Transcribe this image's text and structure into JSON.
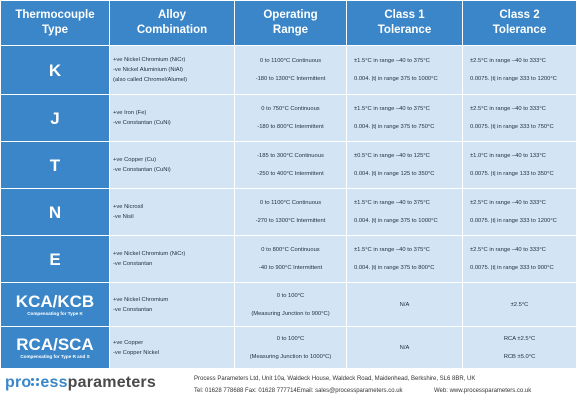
{
  "headers": [
    [
      "Thermocouple",
      "Type"
    ],
    [
      "Alloy",
      "Combination"
    ],
    [
      "Operating",
      "Range"
    ],
    [
      "Class 1",
      "Tolerance"
    ],
    [
      "Class 2",
      "Tolerance"
    ]
  ],
  "rows": [
    {
      "type": "K",
      "sub": "",
      "alloy": [
        "+ve   Nickel Chromium (NiCr)",
        "-ve    Nickel Aluminium (NiAl)",
        "(also called Chromel/Alumel)"
      ],
      "range": [
        "0 to 1100°C Continuous",
        "",
        "-180 to 1300°C Intermittent"
      ],
      "class1": [
        "±1.5°C in range –40 to 375°C",
        "",
        "0.004. |t| in range 375 to 1000°C"
      ],
      "class2": [
        "±2.5°C in range –40 to 333°C",
        "",
        "0.0075. |t| in range 333 to 1200°C"
      ]
    },
    {
      "type": "J",
      "sub": "",
      "alloy": [
        "+ve    Iron (Fe)",
        "-ve    Constantan (CuNi)"
      ],
      "range": [
        "0 to 750°C Continuous",
        "",
        "-180 to 800°C Intermittent"
      ],
      "class1": [
        "±1.5°C in range –40 to 375°C",
        "",
        "0.004. |t| in range 375 to 750°C"
      ],
      "class2": [
        "±2.5°C in range –40 to 333°C",
        "",
        "0.0075. |t| in range 333 to 750°C"
      ]
    },
    {
      "type": "T",
      "sub": "",
      "alloy": [
        "+ve    Copper (Cu)",
        "-ve    Constantan (CuNi)"
      ],
      "range": [
        "-185 to 300°C Continuous",
        "",
        "-250 to 400°C Intermittent"
      ],
      "class1": [
        "±0.5°C in range –40 to 125°C",
        "",
        "0.004. |t| in range 125 to 350°C"
      ],
      "class2": [
        "±1.0°C in range –40 to 133°C",
        "",
        "0.0075. |t| in range 133 to 350°C"
      ]
    },
    {
      "type": "N",
      "sub": "",
      "alloy": [
        "+ve     Nicrosil",
        "-ve     Nisil"
      ],
      "range": [
        "0 to 1100°C Continuous",
        "",
        "-270 to 1300°C Intermittent"
      ],
      "class1": [
        "±1.5°C in range –40 to 375°C",
        "",
        "0.004. |t| in range 375 to 1000°C"
      ],
      "class2": [
        "±2.5°C in range –40 to 333°C",
        "",
        "0.0075. |t| in range 333 to 1200°C"
      ]
    },
    {
      "type": "E",
      "sub": "",
      "alloy": [
        "+ve   Nickel Chromium (NiCr)",
        "-ve     Constantan"
      ],
      "range": [
        "0 to 800°C Continuous",
        "",
        "-40 to 900°C Intermittent"
      ],
      "class1": [
        "±1.5°C in range –40 to 375°C",
        "",
        "0.004. |t| in range 375 to 800°C"
      ],
      "class2": [
        "±2.5°C in range –40 to 333°C",
        "",
        "0.0075. |t| in range 333 to 900°C"
      ]
    },
    {
      "type": "KCA/KCB",
      "sub": "Compensating for Type K",
      "alloy": [
        "+ve    Nickel Chromium",
        "-ve     Constantan"
      ],
      "range": [
        "0 to 100°C",
        "",
        "(Measuring Junction to 900°C)"
      ],
      "class1": [
        "N/A"
      ],
      "class2": [
        "±2.5°C"
      ]
    },
    {
      "type": "RCA/SCA",
      "sub": "Compensating for Type R and S",
      "alloy": [
        "+ve       Copper",
        "-ve     Copper Nickel"
      ],
      "range": [
        "0 to 100°C",
        "",
        "(Measuring Junction to 1000°C)"
      ],
      "class1": [
        "N/A"
      ],
      "class2": [
        "RCA ±2.5°C",
        "",
        "RCB ±5.0°C"
      ]
    }
  ],
  "footer": {
    "logo_part1": "pro",
    "logo_part2": "ess",
    "logo_part3": "parameters",
    "address": "Process Parameters Ltd, Unit 10a, Waldeck House, Waldeck Road, Maidenhead, Berkshire, SL6 8BR, UK",
    "contact": "Tel: 01628 778688 Fax: 01628 777714Email: sales@processparameters.co.uk",
    "web": "Web: www.processparameters.co.uk",
    "brand_color": "#3a86c8"
  }
}
